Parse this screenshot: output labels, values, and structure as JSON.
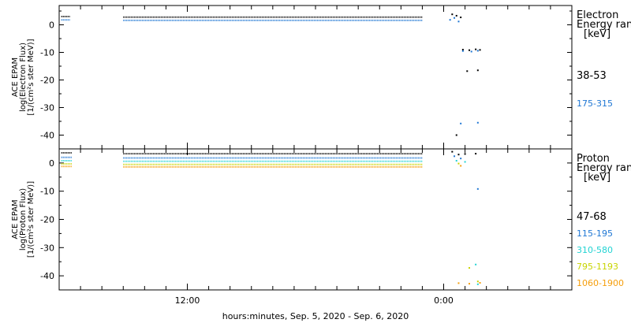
{
  "chart_data": [
    {
      "type": "scatter",
      "panel": "electron",
      "ylabel_lines": [
        "ACE EPAM",
        "log(Electron Flux)",
        "[1/(cm²s ster MeV)]"
      ],
      "ylim": [
        -45,
        7
      ],
      "yticks": [
        0,
        -10,
        -20,
        -30,
        -40
      ],
      "ytick_labels": [
        "0",
        "-10",
        "-20",
        "-30",
        "-40"
      ],
      "legend_title_lines": [
        "Electron",
        "Energy ran",
        "[keV]"
      ],
      "series": [
        {
          "name": "38-53",
          "color": "#000000",
          "segments": [
            {
              "x": [
                0.1,
                0.5
              ],
              "y": 3.0
            },
            {
              "x": [
                3.0,
                17.0
              ],
              "y": 2.8
            }
          ],
          "scatter": [
            [
              18.4,
              3.8
            ],
            [
              18.6,
              3.3
            ],
            [
              18.8,
              2.7
            ],
            [
              18.9,
              -9.0
            ],
            [
              19.2,
              -9.2
            ],
            [
              19.5,
              -8.9
            ],
            [
              19.7,
              -9.1
            ],
            [
              19.1,
              -16.8
            ],
            [
              19.6,
              -16.5
            ],
            [
              18.6,
              -40.0
            ]
          ]
        },
        {
          "name": "175-315",
          "color": "#1f77d4",
          "segments": [
            {
              "x": [
                0.1,
                0.5
              ],
              "y": 1.8
            },
            {
              "x": [
                3.0,
                17.0
              ],
              "y": 1.6
            }
          ],
          "scatter": [
            [
              18.3,
              1.8
            ],
            [
              18.5,
              2.5
            ],
            [
              18.7,
              1.2
            ],
            [
              18.9,
              -9.5
            ],
            [
              19.3,
              -9.7
            ],
            [
              19.6,
              -9.4
            ],
            [
              18.8,
              -35.8
            ],
            [
              19.6,
              -35.5
            ]
          ]
        }
      ]
    },
    {
      "type": "scatter",
      "panel": "proton",
      "ylabel_lines": [
        "ACE EPAM",
        "log(Proton Flux)",
        "[1/(cm²s ster MeV)]"
      ],
      "ylim": [
        -45,
        5
      ],
      "yticks": [
        0,
        -10,
        -20,
        -30,
        -40
      ],
      "ytick_labels": [
        "0",
        "-10",
        "-20",
        "-30",
        "-40"
      ],
      "legend_title_lines": [
        "Proton",
        "Energy ran",
        "[keV]"
      ],
      "series": [
        {
          "name": "47-68",
          "color": "#000000",
          "segments": [
            {
              "x": [
                0.1,
                0.6
              ],
              "y": 3.6
            },
            {
              "x": [
                3.0,
                17.0
              ],
              "y": 3.3
            }
          ],
          "scatter": [
            [
              18.4,
              4.0
            ],
            [
              18.7,
              3.0
            ],
            [
              19.0,
              3.2
            ],
            [
              19.5,
              3.3
            ]
          ]
        },
        {
          "name": "115-195",
          "color": "#1f77d4",
          "segments": [
            {
              "x": [
                0.1,
                0.6
              ],
              "y": 2.0
            },
            {
              "x": [
                3.0,
                17.0
              ],
              "y": 1.8
            }
          ],
          "scatter": [
            [
              18.5,
              2.4
            ],
            [
              18.8,
              1.6
            ],
            [
              19.6,
              -9.2
            ]
          ]
        },
        {
          "name": "310-580",
          "color": "#22d3d3",
          "segments": [
            {
              "x": [
                0.1,
                0.6
              ],
              "y": 0.8
            },
            {
              "x": [
                3.0,
                17.0
              ],
              "y": 0.6
            }
          ],
          "scatter": [
            [
              18.6,
              0.8
            ],
            [
              19.0,
              0.4
            ],
            [
              19.5,
              -36.0
            ],
            [
              19.6,
              -43.0
            ]
          ]
        },
        {
          "name": "795-1193",
          "color": "#c8d400",
          "segments": [
            {
              "x": [
                0.1,
                0.6
              ],
              "y": -0.3
            },
            {
              "x": [
                3.0,
                17.0
              ],
              "y": -0.5
            }
          ],
          "scatter": [
            [
              18.7,
              -0.2
            ],
            [
              19.2,
              -37.2
            ],
            [
              19.6,
              -42.0
            ]
          ]
        },
        {
          "name": "1060-1900",
          "color": "#f59e0b",
          "segments": [
            {
              "x": [
                0.1,
                0.6
              ],
              "y": -1.2
            },
            {
              "x": [
                3.0,
                17.0
              ],
              "y": -1.4
            }
          ],
          "scatter": [
            [
              18.8,
              -1.0
            ],
            [
              18.7,
              -42.6
            ],
            [
              19.2,
              -42.8
            ],
            [
              19.7,
              -42.5
            ]
          ]
        }
      ]
    }
  ],
  "x_axis": {
    "range_hours": [
      0,
      24
    ],
    "major_ticks": [
      {
        "value": 6,
        "label": "12:00"
      },
      {
        "value": 18,
        "label": "0:00"
      }
    ],
    "minor_tick_step_hours": 1,
    "title": "hours:minutes, Sep.  5, 2020 - Sep.  6, 2020"
  }
}
